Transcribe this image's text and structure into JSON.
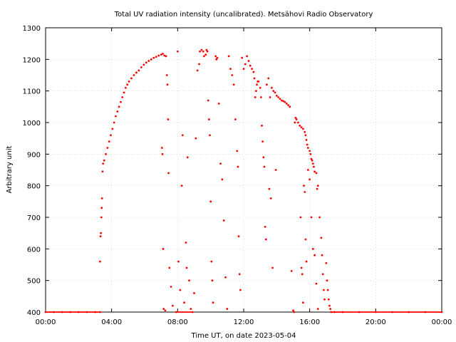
{
  "chart_data": {
    "type": "scatter",
    "title": "Total UV radiation intensity (uncalibrated). Metsähovi Radio Observatory",
    "xlabel": "Time UT, on date 2023-05-04",
    "ylabel": "Arbitrary unit",
    "xlim_hours": [
      0,
      24
    ],
    "ylim": [
      400,
      1300
    ],
    "x_ticks": [
      {
        "hour": 0,
        "label": "00:00"
      },
      {
        "hour": 4,
        "label": "04:00"
      },
      {
        "hour": 8,
        "label": "08:00"
      },
      {
        "hour": 12,
        "label": "12:00"
      },
      {
        "hour": 16,
        "label": "16:00"
      },
      {
        "hour": 20,
        "label": "20:00"
      },
      {
        "hour": 24,
        "label": "00:00"
      }
    ],
    "y_ticks": [
      400,
      500,
      600,
      700,
      800,
      900,
      1000,
      1100,
      1200,
      1300
    ],
    "grid": true,
    "marker_color": "#ff0000",
    "series": [
      {
        "points": [
          [
            0.0,
            400
          ],
          [
            0.5,
            400
          ],
          [
            1.0,
            400
          ],
          [
            1.5,
            400
          ],
          [
            2.0,
            400
          ],
          [
            2.5,
            400
          ],
          [
            3.0,
            400
          ],
          [
            3.3,
            400
          ],
          [
            3.3,
            560
          ],
          [
            3.33,
            640
          ],
          [
            3.35,
            650
          ],
          [
            3.38,
            700
          ],
          [
            3.4,
            730
          ],
          [
            3.42,
            760
          ],
          [
            3.45,
            845
          ],
          [
            3.48,
            870
          ],
          [
            3.55,
            880
          ],
          [
            3.65,
            900
          ],
          [
            3.75,
            920
          ],
          [
            3.85,
            940
          ],
          [
            3.95,
            960
          ],
          [
            4.05,
            980
          ],
          [
            4.15,
            1000
          ],
          [
            4.25,
            1020
          ],
          [
            4.35,
            1035
          ],
          [
            4.45,
            1050
          ],
          [
            4.55,
            1065
          ],
          [
            4.65,
            1080
          ],
          [
            4.75,
            1095
          ],
          [
            4.85,
            1110
          ],
          [
            4.95,
            1120
          ],
          [
            5.05,
            1130
          ],
          [
            5.2,
            1140
          ],
          [
            5.35,
            1150
          ],
          [
            5.5,
            1158
          ],
          [
            5.65,
            1165
          ],
          [
            5.8,
            1175
          ],
          [
            5.95,
            1183
          ],
          [
            6.1,
            1190
          ],
          [
            6.25,
            1195
          ],
          [
            6.4,
            1200
          ],
          [
            6.55,
            1205
          ],
          [
            6.7,
            1208
          ],
          [
            6.85,
            1212
          ],
          [
            7.0,
            1215
          ],
          [
            7.1,
            1218
          ],
          [
            7.2,
            1212
          ],
          [
            7.3,
            1210
          ],
          [
            7.05,
            920
          ],
          [
            7.08,
            900
          ],
          [
            7.12,
            600
          ],
          [
            7.15,
            410
          ],
          [
            7.25,
            405
          ],
          [
            7.35,
            1150
          ],
          [
            7.38,
            1120
          ],
          [
            7.42,
            1010
          ],
          [
            7.45,
            840
          ],
          [
            7.5,
            540
          ],
          [
            7.6,
            480
          ],
          [
            7.7,
            420
          ],
          [
            7.9,
            400
          ],
          [
            8.0,
            1225
          ],
          [
            8.05,
            560
          ],
          [
            8.15,
            470
          ],
          [
            8.25,
            800
          ],
          [
            8.3,
            960
          ],
          [
            8.4,
            430
          ],
          [
            8.5,
            620
          ],
          [
            8.55,
            540
          ],
          [
            8.6,
            890
          ],
          [
            8.7,
            500
          ],
          [
            8.8,
            410
          ],
          [
            8.9,
            400
          ],
          [
            9.0,
            460
          ],
          [
            9.1,
            950
          ],
          [
            9.2,
            1165
          ],
          [
            9.3,
            1185
          ],
          [
            9.35,
            1225
          ],
          [
            9.45,
            1230
          ],
          [
            9.55,
            1225
          ],
          [
            9.6,
            1210
          ],
          [
            9.7,
            1215
          ],
          [
            9.75,
            1230
          ],
          [
            9.8,
            1225
          ],
          [
            9.85,
            1070
          ],
          [
            9.9,
            1010
          ],
          [
            9.95,
            960
          ],
          [
            10.0,
            750
          ],
          [
            10.05,
            560
          ],
          [
            10.1,
            500
          ],
          [
            10.15,
            430
          ],
          [
            10.3,
            1210
          ],
          [
            10.35,
            1200
          ],
          [
            10.4,
            1205
          ],
          [
            10.5,
            1060
          ],
          [
            10.6,
            870
          ],
          [
            10.7,
            820
          ],
          [
            10.8,
            690
          ],
          [
            10.9,
            510
          ],
          [
            11.0,
            410
          ],
          [
            11.1,
            1210
          ],
          [
            11.2,
            1170
          ],
          [
            11.3,
            1150
          ],
          [
            11.4,
            1120
          ],
          [
            11.5,
            1010
          ],
          [
            11.6,
            910
          ],
          [
            11.65,
            860
          ],
          [
            11.7,
            640
          ],
          [
            11.75,
            520
          ],
          [
            11.8,
            470
          ],
          [
            11.9,
            1205
          ],
          [
            12.0,
            1170
          ],
          [
            12.1,
            1185
          ],
          [
            12.2,
            1210
          ],
          [
            12.3,
            1195
          ],
          [
            12.4,
            1180
          ],
          [
            12.5,
            1170
          ],
          [
            12.6,
            1160
          ],
          [
            12.65,
            1140
          ],
          [
            12.7,
            1080
          ],
          [
            12.75,
            1100
          ],
          [
            12.8,
            1120
          ],
          [
            12.85,
            1130
          ],
          [
            12.9,
            1130
          ],
          [
            13.0,
            1110
          ],
          [
            13.05,
            1080
          ],
          [
            13.1,
            990
          ],
          [
            13.15,
            940
          ],
          [
            13.2,
            890
          ],
          [
            13.25,
            860
          ],
          [
            13.3,
            670
          ],
          [
            13.35,
            630
          ],
          [
            13.4,
            1120
          ],
          [
            13.5,
            1140
          ],
          [
            13.6,
            1080
          ],
          [
            13.7,
            1110
          ],
          [
            13.8,
            1100
          ],
          [
            13.9,
            1095
          ],
          [
            14.0,
            1085
          ],
          [
            14.1,
            1080
          ],
          [
            14.2,
            1075
          ],
          [
            14.3,
            1070
          ],
          [
            14.4,
            1068
          ],
          [
            14.5,
            1065
          ],
          [
            14.6,
            1060
          ],
          [
            14.7,
            1055
          ],
          [
            14.8,
            1050
          ],
          [
            13.55,
            790
          ],
          [
            13.65,
            760
          ],
          [
            13.75,
            540
          ],
          [
            13.95,
            850
          ],
          [
            14.9,
            530
          ],
          [
            15.0,
            405
          ],
          [
            15.05,
            400
          ],
          [
            15.1,
            1000
          ],
          [
            15.15,
            1015
          ],
          [
            15.2,
            1010
          ],
          [
            15.3,
            1000
          ],
          [
            15.4,
            990
          ],
          [
            15.5,
            985
          ],
          [
            15.6,
            980
          ],
          [
            15.7,
            970
          ],
          [
            15.75,
            960
          ],
          [
            15.8,
            945
          ],
          [
            15.85,
            930
          ],
          [
            15.9,
            920
          ],
          [
            16.0,
            910
          ],
          [
            16.05,
            900
          ],
          [
            16.1,
            885
          ],
          [
            16.15,
            880
          ],
          [
            16.2,
            870
          ],
          [
            16.25,
            860
          ],
          [
            16.3,
            845
          ],
          [
            16.4,
            840
          ],
          [
            16.45,
            790
          ],
          [
            16.5,
            800
          ],
          [
            15.45,
            700
          ],
          [
            15.5,
            540
          ],
          [
            15.55,
            520
          ],
          [
            15.6,
            430
          ],
          [
            15.65,
            800
          ],
          [
            15.7,
            780
          ],
          [
            15.75,
            630
          ],
          [
            15.8,
            560
          ],
          [
            15.9,
            850
          ],
          [
            16.0,
            820
          ],
          [
            16.1,
            700
          ],
          [
            16.2,
            600
          ],
          [
            16.3,
            580
          ],
          [
            16.4,
            490
          ],
          [
            16.5,
            410
          ],
          [
            16.6,
            700
          ],
          [
            16.7,
            635
          ],
          [
            16.75,
            580
          ],
          [
            16.8,
            520
          ],
          [
            16.85,
            470
          ],
          [
            16.9,
            440
          ],
          [
            17.0,
            555
          ],
          [
            17.05,
            500
          ],
          [
            17.1,
            470
          ],
          [
            17.15,
            440
          ],
          [
            17.2,
            420
          ],
          [
            17.25,
            410
          ],
          [
            17.3,
            400
          ],
          [
            17.5,
            400
          ],
          [
            18.0,
            400
          ],
          [
            19.0,
            400
          ],
          [
            20.0,
            400
          ],
          [
            21.0,
            400
          ],
          [
            22.0,
            400
          ],
          [
            23.0,
            400
          ],
          [
            24.0,
            400
          ]
        ]
      }
    ]
  }
}
